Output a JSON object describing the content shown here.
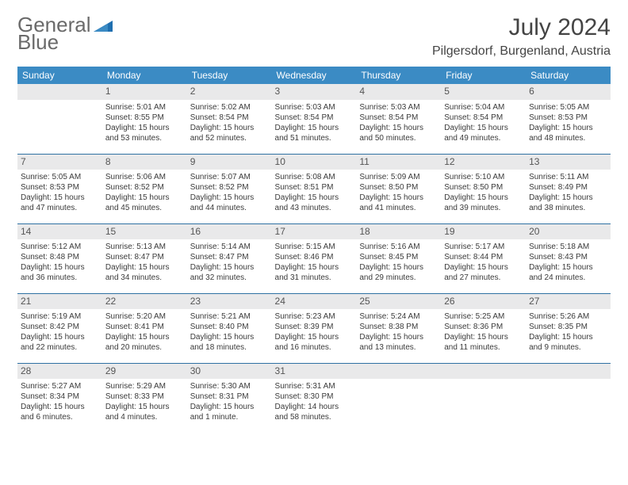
{
  "logo": {
    "word1": "General",
    "word2": "Blue"
  },
  "title": "July 2024",
  "location": "Pilgersdorf, Burgenland, Austria",
  "colors": {
    "header_blue": "#3b8bc4",
    "divider": "#2f71a3",
    "day_bg": "#e9e9ea",
    "logo_gray": "#6a6a6a",
    "logo_blue": "#1f6fb0"
  },
  "weekdays": [
    "Sunday",
    "Monday",
    "Tuesday",
    "Wednesday",
    "Thursday",
    "Friday",
    "Saturday"
  ],
  "weeks": [
    [
      {
        "blank": true
      },
      {
        "n": "1",
        "sr": "Sunrise: 5:01 AM",
        "ss": "Sunset: 8:55 PM",
        "dl": "Daylight: 15 hours and 53 minutes."
      },
      {
        "n": "2",
        "sr": "Sunrise: 5:02 AM",
        "ss": "Sunset: 8:54 PM",
        "dl": "Daylight: 15 hours and 52 minutes."
      },
      {
        "n": "3",
        "sr": "Sunrise: 5:03 AM",
        "ss": "Sunset: 8:54 PM",
        "dl": "Daylight: 15 hours and 51 minutes."
      },
      {
        "n": "4",
        "sr": "Sunrise: 5:03 AM",
        "ss": "Sunset: 8:54 PM",
        "dl": "Daylight: 15 hours and 50 minutes."
      },
      {
        "n": "5",
        "sr": "Sunrise: 5:04 AM",
        "ss": "Sunset: 8:54 PM",
        "dl": "Daylight: 15 hours and 49 minutes."
      },
      {
        "n": "6",
        "sr": "Sunrise: 5:05 AM",
        "ss": "Sunset: 8:53 PM",
        "dl": "Daylight: 15 hours and 48 minutes."
      }
    ],
    [
      {
        "n": "7",
        "sr": "Sunrise: 5:05 AM",
        "ss": "Sunset: 8:53 PM",
        "dl": "Daylight: 15 hours and 47 minutes."
      },
      {
        "n": "8",
        "sr": "Sunrise: 5:06 AM",
        "ss": "Sunset: 8:52 PM",
        "dl": "Daylight: 15 hours and 45 minutes."
      },
      {
        "n": "9",
        "sr": "Sunrise: 5:07 AM",
        "ss": "Sunset: 8:52 PM",
        "dl": "Daylight: 15 hours and 44 minutes."
      },
      {
        "n": "10",
        "sr": "Sunrise: 5:08 AM",
        "ss": "Sunset: 8:51 PM",
        "dl": "Daylight: 15 hours and 43 minutes."
      },
      {
        "n": "11",
        "sr": "Sunrise: 5:09 AM",
        "ss": "Sunset: 8:50 PM",
        "dl": "Daylight: 15 hours and 41 minutes."
      },
      {
        "n": "12",
        "sr": "Sunrise: 5:10 AM",
        "ss": "Sunset: 8:50 PM",
        "dl": "Daylight: 15 hours and 39 minutes."
      },
      {
        "n": "13",
        "sr": "Sunrise: 5:11 AM",
        "ss": "Sunset: 8:49 PM",
        "dl": "Daylight: 15 hours and 38 minutes."
      }
    ],
    [
      {
        "n": "14",
        "sr": "Sunrise: 5:12 AM",
        "ss": "Sunset: 8:48 PM",
        "dl": "Daylight: 15 hours and 36 minutes."
      },
      {
        "n": "15",
        "sr": "Sunrise: 5:13 AM",
        "ss": "Sunset: 8:47 PM",
        "dl": "Daylight: 15 hours and 34 minutes."
      },
      {
        "n": "16",
        "sr": "Sunrise: 5:14 AM",
        "ss": "Sunset: 8:47 PM",
        "dl": "Daylight: 15 hours and 32 minutes."
      },
      {
        "n": "17",
        "sr": "Sunrise: 5:15 AM",
        "ss": "Sunset: 8:46 PM",
        "dl": "Daylight: 15 hours and 31 minutes."
      },
      {
        "n": "18",
        "sr": "Sunrise: 5:16 AM",
        "ss": "Sunset: 8:45 PM",
        "dl": "Daylight: 15 hours and 29 minutes."
      },
      {
        "n": "19",
        "sr": "Sunrise: 5:17 AM",
        "ss": "Sunset: 8:44 PM",
        "dl": "Daylight: 15 hours and 27 minutes."
      },
      {
        "n": "20",
        "sr": "Sunrise: 5:18 AM",
        "ss": "Sunset: 8:43 PM",
        "dl": "Daylight: 15 hours and 24 minutes."
      }
    ],
    [
      {
        "n": "21",
        "sr": "Sunrise: 5:19 AM",
        "ss": "Sunset: 8:42 PM",
        "dl": "Daylight: 15 hours and 22 minutes."
      },
      {
        "n": "22",
        "sr": "Sunrise: 5:20 AM",
        "ss": "Sunset: 8:41 PM",
        "dl": "Daylight: 15 hours and 20 minutes."
      },
      {
        "n": "23",
        "sr": "Sunrise: 5:21 AM",
        "ss": "Sunset: 8:40 PM",
        "dl": "Daylight: 15 hours and 18 minutes."
      },
      {
        "n": "24",
        "sr": "Sunrise: 5:23 AM",
        "ss": "Sunset: 8:39 PM",
        "dl": "Daylight: 15 hours and 16 minutes."
      },
      {
        "n": "25",
        "sr": "Sunrise: 5:24 AM",
        "ss": "Sunset: 8:38 PM",
        "dl": "Daylight: 15 hours and 13 minutes."
      },
      {
        "n": "26",
        "sr": "Sunrise: 5:25 AM",
        "ss": "Sunset: 8:36 PM",
        "dl": "Daylight: 15 hours and 11 minutes."
      },
      {
        "n": "27",
        "sr": "Sunrise: 5:26 AM",
        "ss": "Sunset: 8:35 PM",
        "dl": "Daylight: 15 hours and 9 minutes."
      }
    ],
    [
      {
        "n": "28",
        "sr": "Sunrise: 5:27 AM",
        "ss": "Sunset: 8:34 PM",
        "dl": "Daylight: 15 hours and 6 minutes."
      },
      {
        "n": "29",
        "sr": "Sunrise: 5:29 AM",
        "ss": "Sunset: 8:33 PM",
        "dl": "Daylight: 15 hours and 4 minutes."
      },
      {
        "n": "30",
        "sr": "Sunrise: 5:30 AM",
        "ss": "Sunset: 8:31 PM",
        "dl": "Daylight: 15 hours and 1 minute."
      },
      {
        "n": "31",
        "sr": "Sunrise: 5:31 AM",
        "ss": "Sunset: 8:30 PM",
        "dl": "Daylight: 14 hours and 58 minutes."
      },
      {
        "blank": true
      },
      {
        "blank": true
      },
      {
        "blank": true
      }
    ]
  ]
}
